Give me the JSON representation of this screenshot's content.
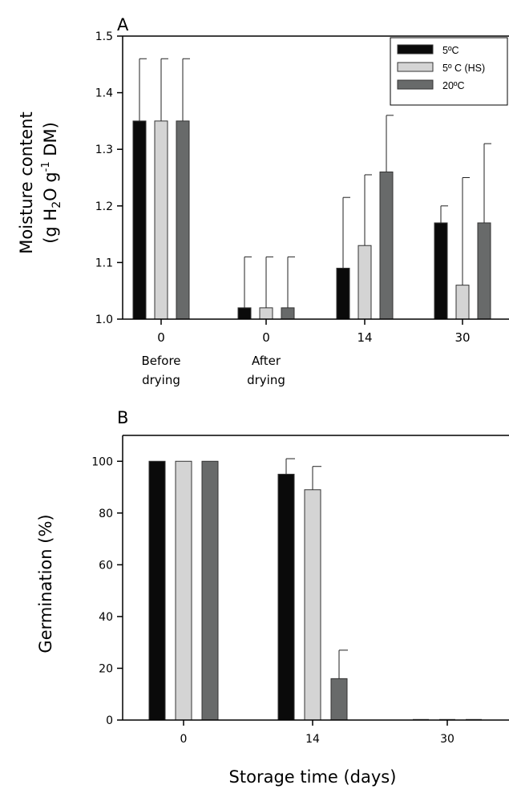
{
  "colors": {
    "5C": "#0a0a0a",
    "5C_HS": "#d4d4d4",
    "20C": "#686a6a"
  },
  "chart_data": [
    {
      "panel": "A",
      "type": "bar",
      "categories": [
        "0",
        "0",
        "14",
        "30"
      ],
      "category_sublabels": [
        [
          "Before",
          "drying"
        ],
        [
          "After",
          "drying"
        ],
        [
          "",
          ""
        ],
        [
          "",
          ""
        ]
      ],
      "ylabel_line1": "Moisture content",
      "ylabel_line2": {
        "pre": "(g H",
        "sub": "2",
        "mid": "O g",
        "sup": "-1",
        "post": " DM)"
      },
      "ylim": [
        1.0,
        1.5
      ],
      "yticks": [
        "1.0",
        "1.1",
        "1.2",
        "1.3",
        "1.4",
        "1.5"
      ],
      "legend": {
        "position": "top-right",
        "labels": [
          "5ºC",
          "5º C (HS)",
          "20ºC"
        ]
      },
      "series": [
        {
          "name": "5ºC",
          "color_key": "5C",
          "values": [
            1.35,
            1.02,
            1.09,
            1.17
          ],
          "errors": [
            0.11,
            0.09,
            0.125,
            0.03
          ]
        },
        {
          "name": "5º C (HS)",
          "color_key": "5C_HS",
          "values": [
            1.35,
            1.02,
            1.13,
            1.06
          ],
          "errors": [
            0.11,
            0.09,
            0.125,
            0.19
          ]
        },
        {
          "name": "20ºC",
          "color_key": "20C",
          "values": [
            1.35,
            1.02,
            1.26,
            1.17
          ],
          "errors": [
            0.11,
            0.09,
            0.1,
            0.14
          ]
        }
      ]
    },
    {
      "panel": "B",
      "type": "bar",
      "categories": [
        "0",
        "14",
        "30"
      ],
      "xlabel": "Storage time (days)",
      "ylabel": "Germination (%)",
      "ylim": [
        0,
        110
      ],
      "yticks": [
        "0",
        "20",
        "40",
        "60",
        "80",
        "100"
      ],
      "series": [
        {
          "name": "5ºC",
          "color_key": "5C",
          "values": [
            100,
            95,
            0
          ],
          "errors": [
            0,
            6,
            0
          ]
        },
        {
          "name": "5º C (HS)",
          "color_key": "5C_HS",
          "values": [
            100,
            89,
            0
          ],
          "errors": [
            0,
            9,
            0
          ]
        },
        {
          "name": "20ºC",
          "color_key": "20C",
          "values": [
            100,
            16,
            0
          ],
          "errors": [
            0,
            11,
            0
          ]
        }
      ]
    }
  ]
}
